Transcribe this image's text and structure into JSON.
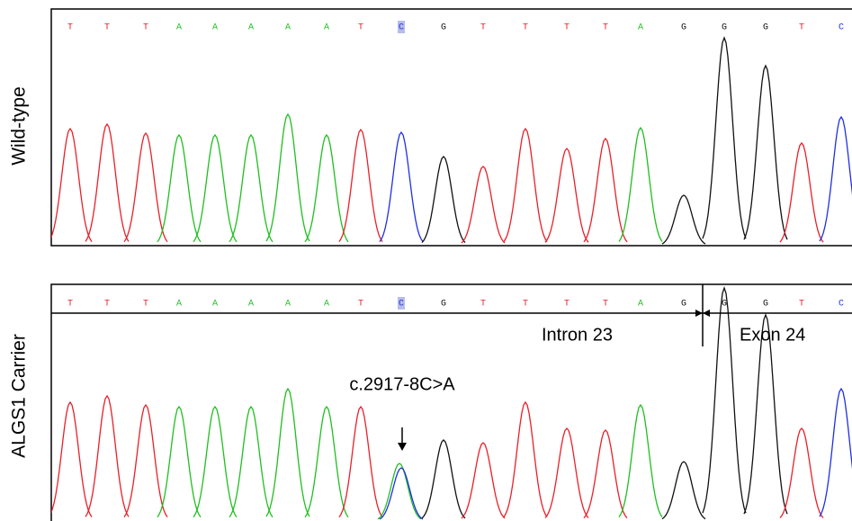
{
  "panels": [
    {
      "label": "Wild-type",
      "bases": [
        "T",
        "T",
        "T",
        "A",
        "A",
        "A",
        "A",
        "A",
        "T",
        "C",
        "G",
        "T",
        "T",
        "T",
        "T",
        "A",
        "G",
        "G",
        "G",
        "T",
        "C"
      ]
    },
    {
      "label": "ALGS1 Carrier",
      "bases": [
        "T",
        "T",
        "T",
        "A",
        "A",
        "A",
        "A",
        "A",
        "T",
        "C",
        "G",
        "T",
        "T",
        "T",
        "T",
        "A",
        "G",
        "G",
        "G",
        "T",
        "C"
      ],
      "regions": [
        "Intron 23",
        "Exon 24"
      ],
      "variant": "c.2917-8C>A"
    }
  ]
}
